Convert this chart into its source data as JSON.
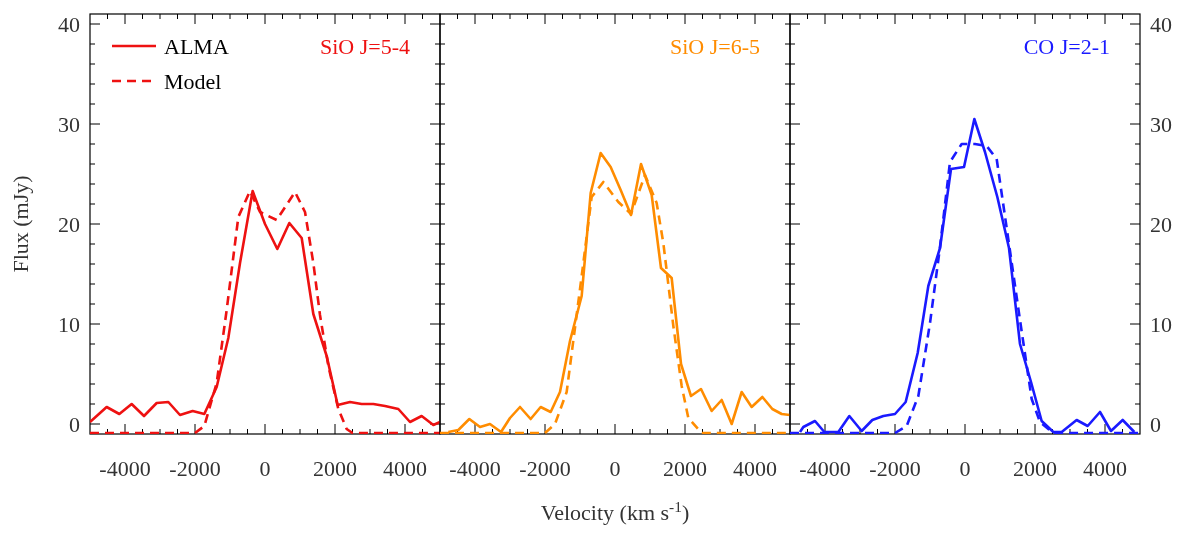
{
  "chart_data": [
    {
      "type": "line",
      "title": "SiO J=5-4",
      "ylabel": "Flux (mJy)",
      "legend": "top left",
      "tick_labels": "xy",
      "xlim": [
        -5000,
        5000
      ],
      "ylim": [
        -1,
        41
      ],
      "xticks": [
        {
          "value": -4500,
          "label": null
        },
        -4000,
        {
          "value": -3500,
          "label": null
        },
        {
          "value": -3000,
          "label": null
        },
        {
          "value": -2500,
          "label": null
        },
        -2000,
        {
          "value": -1500,
          "label": null
        },
        {
          "value": -1000,
          "label": null
        },
        {
          "value": -500,
          "label": null
        },
        0,
        {
          "value": 500,
          "label": null
        },
        {
          "value": 1000,
          "label": null
        },
        {
          "value": 1500,
          "label": null
        },
        2000,
        {
          "value": 2500,
          "label": null
        },
        {
          "value": 3000,
          "label": null
        },
        {
          "value": 3500,
          "label": null
        },
        4000,
        {
          "value": 4500,
          "label": null
        }
      ],
      "yticks": [
        0,
        {
          "value": 2,
          "label": null
        },
        {
          "value": 4,
          "label": null
        },
        {
          "value": 6,
          "label": null
        },
        {
          "value": 8,
          "label": null
        },
        10,
        {
          "value": 12,
          "label": null
        },
        {
          "value": 14,
          "label": null
        },
        {
          "value": 16,
          "label": null
        },
        {
          "value": 18,
          "label": null
        },
        20,
        {
          "value": 22,
          "label": null
        },
        {
          "value": 24,
          "label": null
        },
        {
          "value": 26,
          "label": null
        },
        {
          "value": 28,
          "label": null
        },
        30,
        {
          "value": 32,
          "label": null
        },
        {
          "value": 34,
          "label": null
        },
        {
          "value": 36,
          "label": null
        },
        {
          "value": 38,
          "label": null
        },
        40
      ],
      "series": [
        {
          "name": "ALMA",
          "color": "#ee1111",
          "line_style": "solid",
          "x": [
            -5000,
            -4524,
            -4162,
            -3810,
            -3457,
            -3095,
            -2762,
            -2429,
            -2067,
            -1734,
            -1381,
            -1048,
            -714,
            -353,
            0,
            352,
            695,
            1048,
            1381,
            1762,
            2076,
            2429,
            2762,
            3095,
            3429,
            3810,
            4143,
            4476,
            4810,
            5000
          ],
          "values": [
            0.2,
            1.7,
            1.0,
            2.0,
            0.8,
            2.1,
            2.2,
            0.9,
            1.3,
            1.0,
            3.7,
            8.6,
            16.1,
            23.3,
            20.0,
            17.5,
            20.1,
            18.6,
            11.0,
            6.8,
            1.9,
            2.2,
            2.0,
            2.0,
            1.8,
            1.5,
            0.2,
            0.8,
            -0.1,
            0.2
          ]
        },
        {
          "name": "Model",
          "color": "#ee1111",
          "line_style": "dashed",
          "x": [
            -5000,
            -2000,
            -1734,
            -1381,
            -1095,
            -762,
            -429,
            -143,
            333,
            857,
            1143,
            1381,
            1571,
            1810,
            2095,
            2333,
            2500,
            5000
          ],
          "values": [
            -0.9,
            -0.9,
            -0.2,
            4.1,
            11.4,
            20.7,
            23.3,
            21.2,
            20.4,
            23.2,
            21.2,
            16.1,
            10.9,
            5.8,
            1.5,
            -0.5,
            -0.9,
            -0.9
          ]
        }
      ]
    },
    {
      "type": "line",
      "title": "SiO J=6-5",
      "xlabel": "Velocity (km s$^{-1}$)",
      "tick_labels": "x",
      "xlim": [
        -5000,
        5000
      ],
      "ylim": [
        -1,
        41
      ],
      "xticks": [
        {
          "value": -4500,
          "label": null
        },
        -4000,
        {
          "value": -3500,
          "label": null
        },
        {
          "value": -3000,
          "label": null
        },
        {
          "value": -2500,
          "label": null
        },
        -2000,
        {
          "value": -1500,
          "label": null
        },
        {
          "value": -1000,
          "label": null
        },
        {
          "value": -500,
          "label": null
        },
        0,
        {
          "value": 500,
          "label": null
        },
        {
          "value": 1000,
          "label": null
        },
        {
          "value": 1500,
          "label": null
        },
        2000,
        {
          "value": 2500,
          "label": null
        },
        {
          "value": 3000,
          "label": null
        },
        {
          "value": 3500,
          "label": null
        },
        4000,
        {
          "value": 4500,
          "label": null
        }
      ],
      "yticks": [
        {
          "value": 0,
          "label": null
        },
        {
          "value": 2,
          "label": null
        },
        {
          "value": 4,
          "label": null
        },
        {
          "value": 6,
          "label": null
        },
        {
          "value": 8,
          "label": null
        },
        {
          "value": 10,
          "label": null
        },
        {
          "value": 12,
          "label": null
        },
        {
          "value": 14,
          "label": null
        },
        {
          "value": 16,
          "label": null
        },
        {
          "value": 18,
          "label": null
        },
        {
          "value": 20,
          "label": null
        },
        {
          "value": 22,
          "label": null
        },
        {
          "value": 24,
          "label": null
        },
        {
          "value": 26,
          "label": null
        },
        {
          "value": 28,
          "label": null
        },
        {
          "value": 30,
          "label": null
        },
        {
          "value": 32,
          "label": null
        },
        {
          "value": 34,
          "label": null
        },
        {
          "value": 36,
          "label": null
        },
        {
          "value": 38,
          "label": null
        },
        {
          "value": 40,
          "label": null
        }
      ],
      "series": [
        {
          "color": "#ff8c00",
          "line_style": "solid",
          "x": [
            -4762,
            -4476,
            -4162,
            -3857,
            -3572,
            -3257,
            -3000,
            -2714,
            -2410,
            -2124,
            -1838,
            -1572,
            -1286,
            -952,
            -695,
            -410,
            -124,
            162,
            457,
            743,
            1048,
            1314,
            1619,
            1886,
            2171,
            2457,
            2762,
            3048,
            3334,
            3619,
            3905,
            4210,
            4495,
            4762,
            5000
          ],
          "values": [
            -0.8,
            -0.6,
            0.5,
            -0.3,
            0,
            -0.8,
            0.6,
            1.7,
            0.5,
            1.7,
            1.2,
            3.2,
            8.3,
            12.8,
            23.1,
            27.1,
            25.7,
            23.4,
            20.9,
            26.0,
            22.9,
            15.6,
            14.6,
            6.0,
            2.8,
            3.5,
            1.3,
            2.4,
            0,
            3.2,
            1.7,
            2.7,
            1.5,
            1.0,
            0.9
          ]
        },
        {
          "color": "#ff8c00",
          "line_style": "dashed",
          "x": [
            -5000,
            -2000,
            -1714,
            -1381,
            -952,
            -667,
            -333,
            95,
            457,
            857,
            1190,
            1381,
            1667,
            1905,
            2095,
            2476,
            5000
          ],
          "values": [
            -0.9,
            -0.9,
            0,
            3.2,
            14.8,
            22.7,
            24.2,
            22.2,
            21.0,
            24.9,
            22.1,
            18.1,
            9.8,
            3.8,
            0.6,
            -0.9,
            -0.9
          ]
        }
      ]
    },
    {
      "type": "line",
      "title": "CO J=2-1",
      "tick_labels": "xy",
      "xlim": [
        -5000,
        5000
      ],
      "y2lim": [
        -1,
        41
      ],
      "xticks": [
        {
          "value": -4500,
          "label": null
        },
        -4000,
        {
          "value": -3500,
          "label": null
        },
        {
          "value": -3000,
          "label": null
        },
        {
          "value": -2500,
          "label": null
        },
        -2000,
        {
          "value": -1500,
          "label": null
        },
        {
          "value": -1000,
          "label": null
        },
        {
          "value": -500,
          "label": null
        },
        0,
        {
          "value": 500,
          "label": null
        },
        {
          "value": 1000,
          "label": null
        },
        {
          "value": 1500,
          "label": null
        },
        2000,
        {
          "value": 2500,
          "label": null
        },
        {
          "value": 3000,
          "label": null
        },
        {
          "value": 3500,
          "label": null
        },
        4000,
        {
          "value": 4500,
          "label": null
        }
      ],
      "y2ticks": [
        0,
        {
          "value": 2,
          "label": null
        },
        {
          "value": 4,
          "label": null
        },
        {
          "value": 6,
          "label": null
        },
        {
          "value": 8,
          "label": null
        },
        10,
        {
          "value": 12,
          "label": null
        },
        {
          "value": 14,
          "label": null
        },
        {
          "value": 16,
          "label": null
        },
        {
          "value": 18,
          "label": null
        },
        20,
        {
          "value": 22,
          "label": null
        },
        {
          "value": 24,
          "label": null
        },
        {
          "value": 26,
          "label": null
        },
        {
          "value": 28,
          "label": null
        },
        30,
        {
          "value": 32,
          "label": null
        },
        {
          "value": 34,
          "label": null
        },
        {
          "value": 36,
          "label": null
        },
        {
          "value": 38,
          "label": null
        },
        40
      ],
      "series": [
        {
          "color": "#1a1aff",
          "line_style": "solid",
          "axis": "y2",
          "x": [
            -4714,
            -4619,
            -4286,
            -4019,
            -3619,
            -3305,
            -2952,
            -2648,
            -2333,
            -2000,
            -1695,
            -1352,
            -1048,
            -714,
            -400,
            -28,
            267,
            571,
            924,
            1257,
            1571,
            1886,
            2190,
            2524,
            2762,
            3190,
            3505,
            3857,
            4171,
            4505,
            4838
          ],
          "values": [
            -0.8,
            -0.3,
            0.3,
            -0.8,
            -0.8,
            0.8,
            -0.7,
            0.4,
            0.8,
            1.0,
            2.2,
            7.1,
            13.8,
            17.6,
            25.5,
            25.7,
            30.5,
            27.2,
            22.7,
            17.6,
            8.0,
            4.2,
            0.3,
            -0.8,
            -0.8,
            0.4,
            -0.2,
            1.2,
            -0.7,
            0.4,
            -0.8
          ]
        },
        {
          "color": "#1a1aff",
          "line_style": "dashed",
          "axis": "y2",
          "x": [
            -5000,
            -2000,
            -1667,
            -1333,
            -1000,
            -714,
            -429,
            -95,
            286,
            619,
            905,
            1286,
            1571,
            1905,
            2143,
            2524,
            5000
          ],
          "values": [
            -0.9,
            -0.9,
            -0.2,
            2.8,
            10.1,
            17.7,
            26.2,
            28.0,
            28.0,
            27.8,
            26.5,
            17.3,
            10.4,
            2.5,
            0.2,
            -0.9,
            -0.9
          ]
        }
      ]
    }
  ]
}
